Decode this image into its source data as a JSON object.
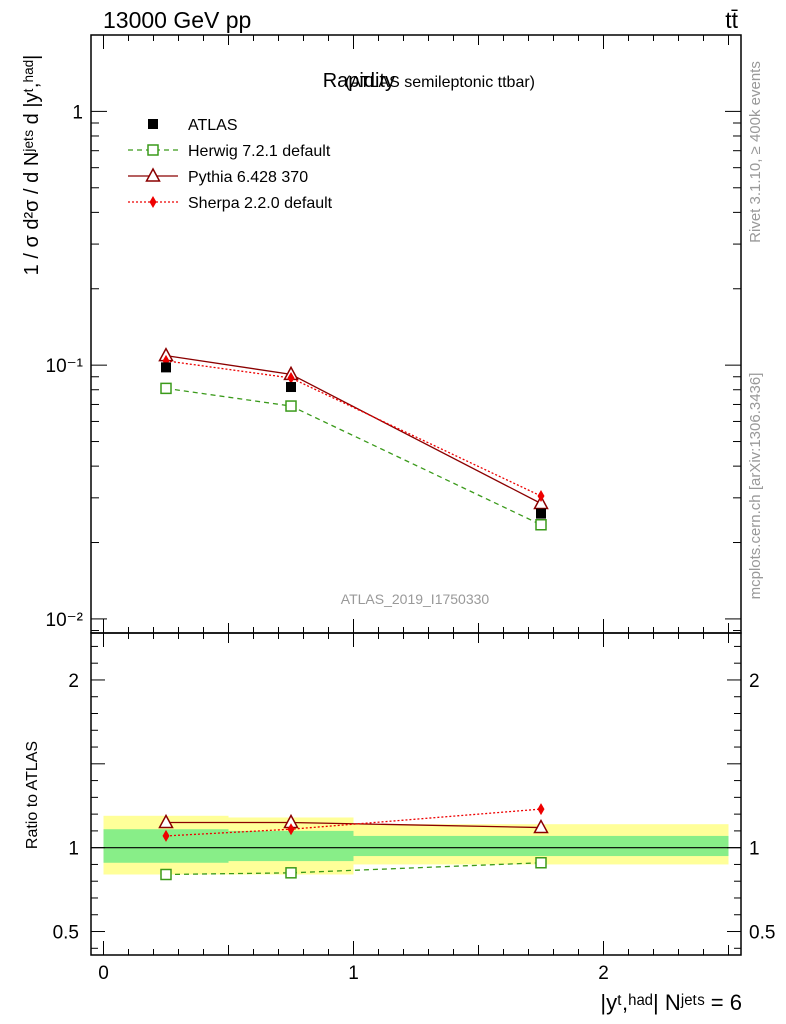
{
  "header": {
    "left": "13000 GeV pp",
    "right": "tt̄"
  },
  "main_title": {
    "text": "Rapidity",
    "sub": "(ATLAS semileptonic ttbar)"
  },
  "side_labels": {
    "rivet": "Rivet 3.1.10, ≥ 400k events",
    "mcplots": "mcplots.cern.ch [arXiv:1306.3436]"
  },
  "watermark": "ATLAS_2019_I1750330",
  "colors": {
    "atlas": "#000000",
    "herwig": "#3a9a1a",
    "pythia": "#8b0000",
    "sherpa": "#ee0000",
    "band_inner": "#88ee88",
    "band_outer": "#ffff99"
  },
  "chart_data": [
    {
      "type": "line",
      "panel": "main",
      "yscale": "log",
      "ylabel": "1 / σ d²σ / d Nʲᵉᵗˢ d |yᵗ,ʰᵃᵈ|",
      "ylim": [
        0.0088,
        2.0
      ],
      "xlim": [
        -0.05,
        2.55
      ],
      "yticks": [
        {
          "value": 1,
          "label": "1"
        },
        {
          "value": 0.1,
          "label": "10⁻¹"
        },
        {
          "value": 0.01,
          "label": "10⁻²"
        }
      ],
      "legend": [
        {
          "key": "atlas",
          "label": "ATLAS"
        },
        {
          "key": "herwig",
          "label": "Herwig 7.2.1 default"
        },
        {
          "key": "pythia",
          "label": "Pythia 6.428 370"
        },
        {
          "key": "sherpa",
          "label": "Sherpa 2.2.0 default"
        }
      ],
      "legend_position": "top-left",
      "x": [
        0.25,
        0.75,
        1.75
      ],
      "series": [
        {
          "key": "atlas",
          "name": "ATLAS",
          "values": [
            0.098,
            0.082,
            0.026
          ]
        },
        {
          "key": "herwig",
          "name": "Herwig 7.2.1 default",
          "values": [
            0.081,
            0.069,
            0.0235
          ]
        },
        {
          "key": "pythia",
          "name": "Pythia 6.428 370",
          "values": [
            0.109,
            0.092,
            0.0285
          ]
        },
        {
          "key": "sherpa",
          "name": "Sherpa 2.2.0 default",
          "values": [
            0.104,
            0.089,
            0.0305
          ]
        }
      ]
    },
    {
      "type": "line",
      "panel": "ratio",
      "ylabel": "Ratio to ATLAS",
      "xlabel": "|yᵗ,ʰᵃᵈ| Nʲᵉᵗˢ = 6",
      "ylim": [
        0.36,
        2.28
      ],
      "xlim": [
        -0.05,
        2.55
      ],
      "yticks": [
        {
          "value": 2,
          "label": "2"
        },
        {
          "value": 1,
          "label": "1"
        },
        {
          "value": 0.5,
          "label": "0.5"
        }
      ],
      "xticks": [
        {
          "value": 0,
          "label": "0"
        },
        {
          "value": 1,
          "label": "1"
        },
        {
          "value": 2,
          "label": "2"
        }
      ],
      "bins": [
        {
          "lo": 0.0,
          "hi": 0.5,
          "inner": [
            0.91,
            1.11
          ],
          "outer": [
            0.84,
            1.19
          ]
        },
        {
          "lo": 0.5,
          "hi": 1.0,
          "inner": [
            0.92,
            1.1
          ],
          "outer": [
            0.84,
            1.18
          ]
        },
        {
          "lo": 1.0,
          "hi": 2.5,
          "inner": [
            0.95,
            1.07
          ],
          "outer": [
            0.9,
            1.14
          ]
        }
      ],
      "x": [
        0.25,
        0.75,
        1.75
      ],
      "series": [
        {
          "key": "herwig",
          "name": "Herwig 7.2.1 default",
          "values": [
            0.84,
            0.85,
            0.91
          ]
        },
        {
          "key": "pythia",
          "name": "Pythia 6.428 370",
          "values": [
            1.15,
            1.15,
            1.12
          ]
        },
        {
          "key": "sherpa",
          "name": "Sherpa 2.2.0 default",
          "values": [
            1.07,
            1.11,
            1.23
          ]
        }
      ]
    }
  ]
}
